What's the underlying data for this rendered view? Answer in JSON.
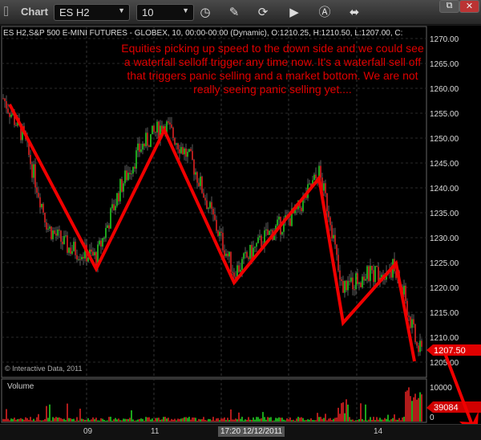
{
  "window": {
    "title": "Chart",
    "symbol": "ES H2",
    "interval": "10",
    "icons": [
      "clock-icon",
      "pencil-icon",
      "refresh-icon",
      "play-icon",
      "alert-icon",
      "link-icon"
    ],
    "restore_label": "⧉",
    "close_label": "✕"
  },
  "chart": {
    "info": "ES H2,S&P 500 E-MINI FUTURES - GLOBEX, 10, 00:00-00:00 (Dynamic), O:1210.25, H:1210.50, L:1207.00, C:",
    "annotation": "Equities picking up speed to the down side and we could see a waterfall selloff trigger any time now. It's a waterfall sell off that triggers panic selling and a market bottom. We are not really seeing panic selling yet....",
    "copyright": "© Interactive Data, 2011",
    "price_ticks": [
      "1270.00",
      "1265.00",
      "1260.00",
      "1255.00",
      "1250.00",
      "1245.00",
      "1240.00",
      "1235.00",
      "1230.00",
      "1225.00",
      "1220.00",
      "1215.00",
      "1210.00",
      "1205.00"
    ],
    "last_price": "1207.50",
    "volume_label": "Volume",
    "volume_ticks": [
      "10000",
      "0"
    ],
    "last_volume": "39084",
    "x_labels": [
      "09",
      "11",
      "14"
    ],
    "cursor_time": "17:20 12/12/2011",
    "colors": {
      "up": "#22cc22",
      "down": "#dd2222",
      "annotation": "#e00000",
      "price_flag": "#e00000"
    }
  }
}
